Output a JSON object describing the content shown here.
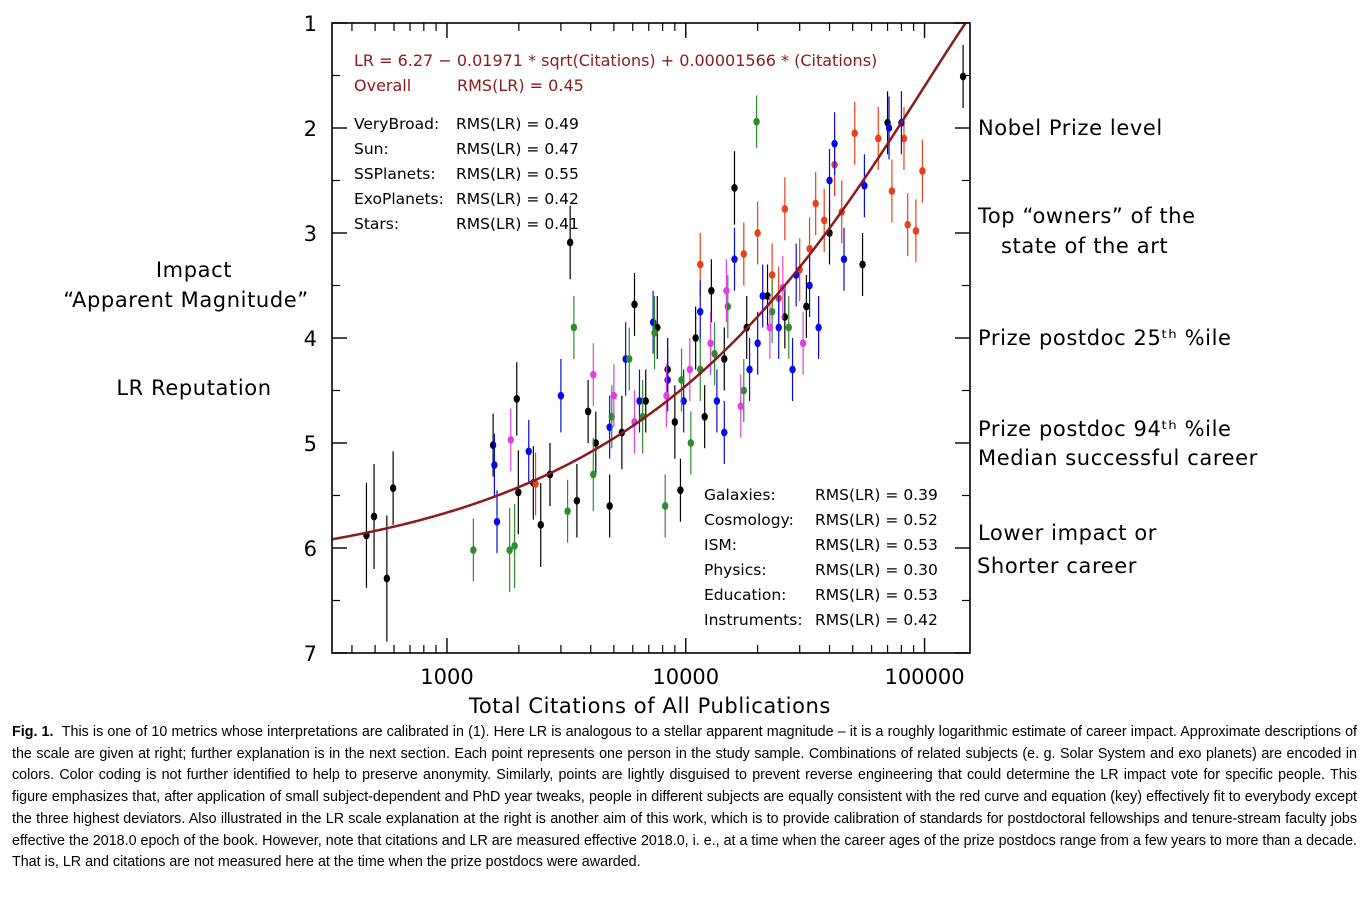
{
  "chart_data": {
    "type": "scatter",
    "xlabel": "Total Citations of All Publications",
    "ylabel_lines": [
      "Impact",
      "“Apparent Magnitude”"
    ],
    "ylabel2": "LR Reputation",
    "x_scale": "log",
    "xlim": [
      330,
      155000
    ],
    "ylim": [
      7,
      1
    ],
    "y_inverted": true,
    "x_tick_labels": [
      "1000",
      "10000",
      "100000"
    ],
    "x_ticks": [
      1000,
      10000,
      100000
    ],
    "y_ticks": [
      1,
      2,
      3,
      4,
      5,
      6,
      7
    ],
    "y_tick_labels": [
      "1",
      "2",
      "3",
      "4",
      "5",
      "6",
      "7"
    ],
    "fit": {
      "equation": "LR = 6.27 − 0.01971 * sqrt(Citations) + 0.00001566 * (Citations)",
      "overall_label": "Overall",
      "overall_rms": "RMS(LR) = 0.45",
      "color": "#8b1a1a",
      "a": 6.27,
      "b": -0.01971,
      "c": 1.566e-05
    },
    "rms_upper": [
      {
        "subject": "VeryBroad:",
        "rms": "RMS(LR) = 0.49"
      },
      {
        "subject": "Sun:",
        "rms": "RMS(LR) = 0.47"
      },
      {
        "subject": "SSPlanets:",
        "rms": "RMS(LR) = 0.55"
      },
      {
        "subject": "ExoPlanets:",
        "rms": "RMS(LR) = 0.42"
      },
      {
        "subject": "Stars:",
        "rms": "RMS(LR) = 0.41"
      }
    ],
    "rms_lower": [
      {
        "subject": "Galaxies:",
        "rms": "RMS(LR) = 0.39"
      },
      {
        "subject": "Cosmology:",
        "rms": "RMS(LR) = 0.52"
      },
      {
        "subject": "ISM:",
        "rms": "RMS(LR) = 0.53"
      },
      {
        "subject": "Physics:",
        "rms": "RMS(LR) = 0.30"
      },
      {
        "subject": "Education:",
        "rms": "RMS(LR) = 0.53"
      },
      {
        "subject": "Instruments:",
        "rms": "RMS(LR) = 0.42"
      }
    ],
    "right_scale": [
      {
        "y": 2.0,
        "lines": [
          "Nobel Prize level"
        ]
      },
      {
        "y": 3.0,
        "lines": [
          "Top “owners” of the",
          "state of the art"
        ]
      },
      {
        "y": 4.0,
        "lines": [
          "Prize postdoc 25ᵗʰ %ile"
        ]
      },
      {
        "y": 5.0,
        "lines": [
          "Prize postdoc 94ᵗʰ %ile",
          "Median successful career"
        ]
      },
      {
        "y": 6.0,
        "lines": [
          "Lower impact  or",
          "Shorter  career"
        ]
      }
    ],
    "colors": {
      "black": "#000000",
      "red": "#e8401a",
      "blue": "#0a0ae6",
      "green": "#2e8b2e",
      "magenta": "#e040e0"
    },
    "series": [
      {
        "name": "black",
        "color": "#000000",
        "points": [
          [
            460,
            5.88,
            0.5
          ],
          [
            495,
            5.7,
            0.5
          ],
          [
            560,
            6.29,
            0.6
          ],
          [
            595,
            5.43,
            0.35
          ],
          [
            1960,
            4.58,
            0.35
          ],
          [
            1990,
            5.47,
            0.4
          ],
          [
            2470,
            5.78,
            0.4
          ],
          [
            3280,
            3.09,
            0.35
          ],
          [
            1560,
            5.02,
            0.3
          ],
          [
            2300,
            5.38,
            0.35
          ],
          [
            2700,
            5.3,
            0.3
          ],
          [
            3500,
            5.55,
            0.35
          ],
          [
            4800,
            5.6,
            0.3
          ],
          [
            5400,
            4.9,
            0.35
          ],
          [
            6100,
            3.68,
            0.3
          ],
          [
            7600,
            3.9,
            0.3
          ],
          [
            8400,
            4.3,
            0.3
          ],
          [
            9500,
            5.45,
            0.3
          ],
          [
            11000,
            4.0,
            0.3
          ],
          [
            12800,
            3.55,
            0.3
          ],
          [
            14500,
            4.2,
            0.3
          ],
          [
            16000,
            2.57,
            0.35
          ],
          [
            18000,
            3.9,
            0.3
          ],
          [
            22000,
            3.6,
            0.3
          ],
          [
            26000,
            3.8,
            0.3
          ],
          [
            32000,
            3.7,
            0.3
          ],
          [
            40000,
            3.0,
            0.3
          ],
          [
            55000,
            3.3,
            0.3
          ],
          [
            70000,
            1.95,
            0.3
          ],
          [
            145000,
            1.51,
            0.3
          ],
          [
            4200,
            5.0,
            0.3
          ],
          [
            6800,
            4.6,
            0.3
          ],
          [
            9000,
            4.8,
            0.35
          ],
          [
            3900,
            4.7,
            0.3
          ],
          [
            12000,
            4.75,
            0.3
          ]
        ]
      },
      {
        "name": "red",
        "color": "#e8401a",
        "points": [
          [
            2350,
            5.39,
            0.3
          ],
          [
            11500,
            3.3,
            0.3
          ],
          [
            20000,
            3.0,
            0.3
          ],
          [
            23000,
            3.4,
            0.3
          ],
          [
            26000,
            2.77,
            0.3
          ],
          [
            30000,
            3.35,
            0.3
          ],
          [
            35000,
            2.72,
            0.3
          ],
          [
            38000,
            2.88,
            0.3
          ],
          [
            42000,
            2.35,
            0.3
          ],
          [
            51000,
            2.05,
            0.3
          ],
          [
            64000,
            2.1,
            0.3
          ],
          [
            73000,
            2.6,
            0.3
          ],
          [
            82000,
            2.1,
            0.3
          ],
          [
            85000,
            2.92,
            0.3
          ],
          [
            92000,
            2.98,
            0.3
          ],
          [
            98000,
            2.41,
            0.3
          ],
          [
            24500,
            3.62,
            0.3
          ],
          [
            17500,
            3.2,
            0.3
          ],
          [
            33000,
            3.15,
            0.3
          ],
          [
            45000,
            2.8,
            0.3
          ]
        ]
      },
      {
        "name": "blue",
        "color": "#0a0ae6",
        "points": [
          [
            1580,
            5.21,
            0.3
          ],
          [
            1620,
            5.75,
            0.3
          ],
          [
            2200,
            5.08,
            0.3
          ],
          [
            3000,
            4.55,
            0.35
          ],
          [
            4800,
            4.85,
            0.3
          ],
          [
            5600,
            4.2,
            0.35
          ],
          [
            6400,
            4.6,
            0.3
          ],
          [
            7300,
            3.85,
            0.3
          ],
          [
            8400,
            4.4,
            0.3
          ],
          [
            9800,
            4.6,
            0.3
          ],
          [
            11500,
            3.75,
            0.3
          ],
          [
            13500,
            4.6,
            0.3
          ],
          [
            16000,
            3.25,
            0.3
          ],
          [
            18500,
            4.3,
            0.3
          ],
          [
            21000,
            3.6,
            0.3
          ],
          [
            24500,
            3.9,
            0.3
          ],
          [
            29000,
            3.4,
            0.3
          ],
          [
            33000,
            3.5,
            0.3
          ],
          [
            40000,
            2.5,
            0.3
          ],
          [
            42000,
            2.15,
            0.3
          ],
          [
            46000,
            3.25,
            0.3
          ],
          [
            56000,
            2.55,
            0.3
          ],
          [
            71000,
            2.0,
            0.3
          ],
          [
            80000,
            1.95,
            0.3
          ],
          [
            28000,
            4.3,
            0.3
          ],
          [
            14500,
            4.9,
            0.3
          ],
          [
            36000,
            3.9,
            0.3
          ],
          [
            20000,
            4.05,
            0.3
          ]
        ]
      },
      {
        "name": "green",
        "color": "#2e8b2e",
        "points": [
          [
            1290,
            6.02,
            0.3
          ],
          [
            1830,
            6.02,
            0.4
          ],
          [
            1920,
            5.98,
            0.4
          ],
          [
            3200,
            5.65,
            0.3
          ],
          [
            4100,
            5.3,
            0.35
          ],
          [
            4900,
            4.75,
            0.3
          ],
          [
            5800,
            4.2,
            0.3
          ],
          [
            6600,
            4.75,
            0.35
          ],
          [
            8200,
            5.6,
            0.3
          ],
          [
            9600,
            4.4,
            0.3
          ],
          [
            11500,
            4.3,
            0.3
          ],
          [
            13200,
            4.15,
            0.3
          ],
          [
            15000,
            3.7,
            0.3
          ],
          [
            19800,
            1.94,
            0.25
          ],
          [
            23000,
            3.75,
            0.3
          ],
          [
            27000,
            3.9,
            0.3
          ],
          [
            3400,
            3.9,
            0.3
          ],
          [
            7400,
            3.95,
            0.35
          ],
          [
            17500,
            4.5,
            0.3
          ],
          [
            10500,
            5.0,
            0.3
          ]
        ]
      },
      {
        "name": "magenta",
        "color": "#e040e0",
        "points": [
          [
            1850,
            4.97,
            0.3
          ],
          [
            4100,
            4.35,
            0.3
          ],
          [
            6100,
            4.8,
            0.3
          ],
          [
            8300,
            4.55,
            0.3
          ],
          [
            10400,
            4.3,
            0.3
          ],
          [
            12700,
            4.05,
            0.3
          ],
          [
            14800,
            3.55,
            0.3
          ],
          [
            22500,
            3.9,
            0.3
          ],
          [
            25500,
            3.52,
            0.3
          ],
          [
            17000,
            4.65,
            0.3
          ],
          [
            5000,
            4.55,
            0.3
          ],
          [
            31000,
            4.05,
            0.3
          ]
        ]
      }
    ]
  },
  "caption": {
    "label": "Fig. 1.",
    "text": "This is one of 10 metrics whose interpretations are calibrated in (1).  Here LR is analogous to a stellar apparent magnitude – it is a roughly logarithmic estimate of career impact.  Approximate descriptions of the scale are given at right; further explanation is in the next section.  Each point represents one person in the study sample.  Combinations of related subjects (e. g.  Solar System and exo planets) are encoded in colors.  Color coding is not further identified to help to preserve anonymity.  Similarly, points are lightly disguised to prevent reverse engineering that could determine the LR impact vote for specific people.  This figure emphasizes that, after application of small subject-dependent and PhD year tweaks, people in different subjects are equally consistent with the red curve and equation (key) effectively fit to everybody except the three highest deviators.  Also illustrated in the LR scale explanation at the right is another aim of this work, which is to provide calibration of standards for postdoctoral fellowships and tenure-stream faculty jobs effective the 2018.0 epoch of the book.  However, note that citations and LR are measured effective 2018.0, i.  e., at a time when the career ages of the prize postdocs range from a few years to more than a decade.  That is, LR and citations are not measured here at the time when the prize postdocs were awarded."
  }
}
